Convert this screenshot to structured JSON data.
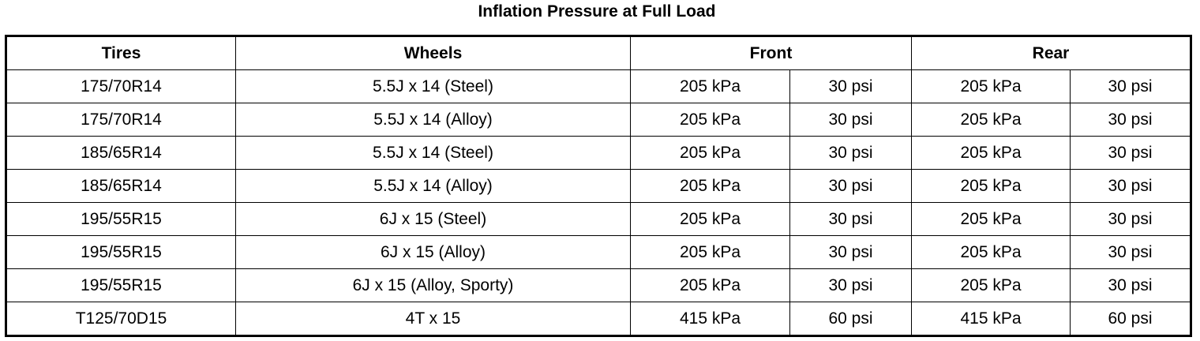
{
  "title": "Inflation Pressure at Full Load",
  "table": {
    "headers": [
      "Tires",
      "Wheels",
      "Front",
      "Rear"
    ],
    "rows": [
      [
        "175/70R14",
        "5.5J x 14 (Steel)",
        "205 kPa",
        "30 psi",
        "205 kPa",
        "30 psi"
      ],
      [
        "175/70R14",
        "5.5J x 14 (Alloy)",
        "205 kPa",
        "30 psi",
        "205 kPa",
        "30 psi"
      ],
      [
        "185/65R14",
        "5.5J x 14 (Steel)",
        "205 kPa",
        "30 psi",
        "205 kPa",
        "30 psi"
      ],
      [
        "185/65R14",
        "5.5J x 14 (Alloy)",
        "205 kPa",
        "30 psi",
        "205 kPa",
        "30 psi"
      ],
      [
        "195/55R15",
        "6J x 15 (Steel)",
        "205 kPa",
        "30 psi",
        "205 kPa",
        "30 psi"
      ],
      [
        "195/55R15",
        "6J x 15 (Alloy)",
        "205 kPa",
        "30 psi",
        "205 kPa",
        "30 psi"
      ],
      [
        "195/55R15",
        "6J x 15 (Alloy, Sporty)",
        "205 kPa",
        "30 psi",
        "205 kPa",
        "30 psi"
      ],
      [
        "T125/70D15",
        "4T x 15",
        "415 kPa",
        "60 psi",
        "415 kPa",
        "60 psi"
      ]
    ]
  }
}
